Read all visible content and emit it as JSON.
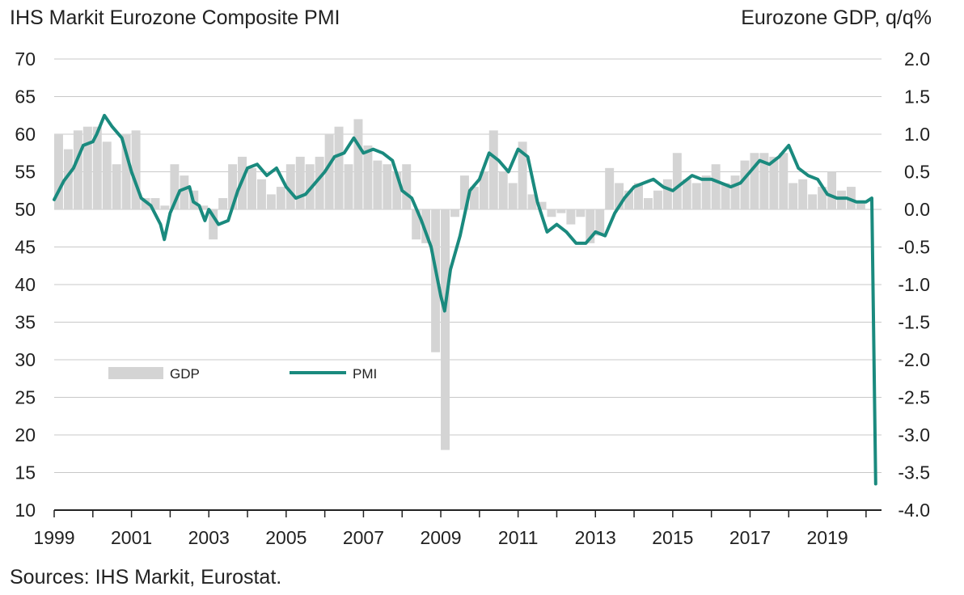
{
  "chart_data": {
    "type": "bar+line",
    "title_left": "IHS Markit Eurozone Composite PMI",
    "title_right": "Eurozone GDP, q/q%",
    "source": "Sources: IHS Markit, Eurostat.",
    "y_left": {
      "range": [
        10,
        70
      ],
      "ticks": [
        "70",
        "65",
        "60",
        "55",
        "50",
        "45",
        "40",
        "35",
        "30",
        "25",
        "20",
        "15",
        "10"
      ]
    },
    "y_right": {
      "range": [
        -4.0,
        2.0
      ],
      "ticks": [
        "2.0",
        "1.5",
        "1.0",
        "0.5",
        "0.0",
        "-0.5",
        "-1.0",
        "-1.5",
        "-2.0",
        "-2.5",
        "-3.0",
        "-3.5",
        "-4.0"
      ]
    },
    "x_range": [
      1999.0,
      2020.4
    ],
    "x_ticks": [
      "1999",
      "2001",
      "2003",
      "2005",
      "2007",
      "2009",
      "2011",
      "2013",
      "2015",
      "2017",
      "2019"
    ],
    "grid": true,
    "legend": {
      "position": "middle-left",
      "items": [
        "GDP",
        "PMI"
      ]
    },
    "colors": {
      "gdp": "#d4d4d4",
      "pmi": "#1a8a7e",
      "grid": "#c8c8c8",
      "axis": "#222222"
    },
    "gdp": {
      "name": "GDP",
      "axis": "right",
      "x": [
        1999.0,
        1999.25,
        1999.5,
        1999.75,
        2000.0,
        2000.25,
        2000.5,
        2000.75,
        2001.0,
        2001.25,
        2001.5,
        2001.75,
        2002.0,
        2002.25,
        2002.5,
        2002.75,
        2003.0,
        2003.25,
        2003.5,
        2003.75,
        2004.0,
        2004.25,
        2004.5,
        2004.75,
        2005.0,
        2005.25,
        2005.5,
        2005.75,
        2006.0,
        2006.25,
        2006.5,
        2006.75,
        2007.0,
        2007.25,
        2007.5,
        2007.75,
        2008.0,
        2008.25,
        2008.5,
        2008.75,
        2009.0,
        2009.25,
        2009.5,
        2009.75,
        2010.0,
        2010.25,
        2010.5,
        2010.75,
        2011.0,
        2011.25,
        2011.5,
        2011.75,
        2012.0,
        2012.25,
        2012.5,
        2012.75,
        2013.0,
        2013.25,
        2013.5,
        2013.75,
        2014.0,
        2014.25,
        2014.5,
        2014.75,
        2015.0,
        2015.25,
        2015.5,
        2015.75,
        2016.0,
        2016.25,
        2016.5,
        2016.75,
        2017.0,
        2017.25,
        2017.5,
        2017.75,
        2018.0,
        2018.25,
        2018.5,
        2018.75,
        2019.0,
        2019.25,
        2019.5,
        2019.75
      ],
      "values": [
        1.0,
        0.8,
        1.05,
        1.1,
        1.1,
        0.9,
        0.6,
        1.0,
        1.05,
        0.15,
        0.15,
        0.05,
        0.6,
        0.45,
        0.25,
        0.05,
        -0.4,
        0.15,
        0.6,
        0.7,
        0.55,
        0.4,
        0.2,
        0.3,
        0.6,
        0.7,
        0.6,
        0.7,
        1.0,
        1.1,
        0.6,
        1.2,
        0.85,
        0.65,
        0.6,
        0.5,
        0.6,
        -0.4,
        -0.45,
        -1.9,
        -3.2,
        -0.1,
        0.45,
        0.3,
        0.5,
        1.05,
        0.5,
        0.35,
        0.9,
        0.2,
        0.1,
        -0.1,
        -0.05,
        -0.2,
        -0.1,
        -0.45,
        -0.35,
        0.55,
        0.35,
        0.25,
        0.35,
        0.15,
        0.25,
        0.4,
        0.75,
        0.4,
        0.35,
        0.45,
        0.6,
        0.35,
        0.45,
        0.65,
        0.75,
        0.75,
        0.7,
        0.75,
        0.35,
        0.4,
        0.2,
        0.3,
        0.5,
        0.25,
        0.3,
        0.1
      ]
    },
    "pmi": {
      "name": "PMI",
      "axis": "left",
      "x": [
        1999.0,
        1999.25,
        1999.5,
        1999.75,
        2000.0,
        2000.1,
        2000.3,
        2000.5,
        2000.75,
        2001.0,
        2001.25,
        2001.5,
        2001.75,
        2001.85,
        2002.0,
        2002.25,
        2002.5,
        2002.6,
        2002.75,
        2002.9,
        2003.0,
        2003.25,
        2003.5,
        2003.75,
        2004.0,
        2004.25,
        2004.5,
        2004.75,
        2005.0,
        2005.25,
        2005.5,
        2005.75,
        2006.0,
        2006.25,
        2006.5,
        2006.75,
        2007.0,
        2007.25,
        2007.5,
        2007.75,
        2008.0,
        2008.25,
        2008.5,
        2008.75,
        2009.0,
        2009.1,
        2009.25,
        2009.5,
        2009.75,
        2010.0,
        2010.25,
        2010.5,
        2010.75,
        2011.0,
        2011.25,
        2011.5,
        2011.75,
        2012.0,
        2012.25,
        2012.5,
        2012.75,
        2013.0,
        2013.25,
        2013.5,
        2013.75,
        2014.0,
        2014.25,
        2014.5,
        2014.75,
        2015.0,
        2015.25,
        2015.5,
        2015.75,
        2016.0,
        2016.25,
        2016.5,
        2016.75,
        2017.0,
        2017.25,
        2017.5,
        2017.75,
        2018.0,
        2018.25,
        2018.5,
        2018.75,
        2019.0,
        2019.25,
        2019.5,
        2019.75,
        2020.0,
        2020.15,
        2020.25
      ],
      "values": [
        51.3,
        53.8,
        55.5,
        58.5,
        59.0,
        60.0,
        62.5,
        61.0,
        59.5,
        55.0,
        51.5,
        50.5,
        48.0,
        46.0,
        49.5,
        52.5,
        53.0,
        51.0,
        50.5,
        48.5,
        50.0,
        48.0,
        48.5,
        52.5,
        55.5,
        56.0,
        54.5,
        55.5,
        53.0,
        51.5,
        52.0,
        53.5,
        55.0,
        57.0,
        57.5,
        59.5,
        57.5,
        58.0,
        57.5,
        56.5,
        52.5,
        51.5,
        48.5,
        45.0,
        38.5,
        36.5,
        42.0,
        46.5,
        52.5,
        54.0,
        57.5,
        56.5,
        55.0,
        58.0,
        57.0,
        51.0,
        47.0,
        48.0,
        47.0,
        45.5,
        45.5,
        47.0,
        46.5,
        49.5,
        51.5,
        53.0,
        53.5,
        54.0,
        53.0,
        52.5,
        53.5,
        54.5,
        54.0,
        54.0,
        53.5,
        53.0,
        53.5,
        55.0,
        56.5,
        56.0,
        57.0,
        58.5,
        55.5,
        54.5,
        54.0,
        52.0,
        51.5,
        51.5,
        51.0,
        51.0,
        51.5,
        13.5
      ]
    }
  }
}
